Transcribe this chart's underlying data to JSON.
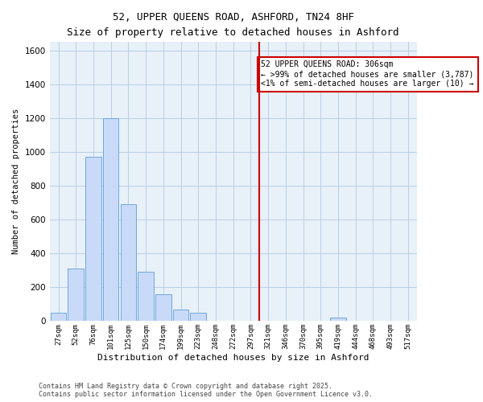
{
  "title": "52, UPPER QUEENS ROAD, ASHFORD, TN24 8HF",
  "subtitle": "Size of property relative to detached houses in Ashford",
  "xlabel": "Distribution of detached houses by size in Ashford",
  "ylabel": "Number of detached properties",
  "bar_labels": [
    "27sqm",
    "52sqm",
    "76sqm",
    "101sqm",
    "125sqm",
    "150sqm",
    "174sqm",
    "199sqm",
    "223sqm",
    "248sqm",
    "272sqm",
    "297sqm",
    "321sqm",
    "346sqm",
    "370sqm",
    "395sqm",
    "419sqm",
    "444sqm",
    "468sqm",
    "493sqm",
    "517sqm"
  ],
  "bar_values": [
    50,
    310,
    970,
    1200,
    690,
    290,
    160,
    70,
    50,
    0,
    0,
    0,
    0,
    0,
    0,
    0,
    20,
    0,
    0,
    0,
    0
  ],
  "bar_color": "#c9daf8",
  "bar_edge_color": "#6fa8dc",
  "vline_x": 11.5,
  "vline_color": "#cc0000",
  "ylim": [
    0,
    1650
  ],
  "yticks": [
    0,
    200,
    400,
    600,
    800,
    1000,
    1200,
    1400,
    1600
  ],
  "grid_color": "#b8cfe8",
  "bg_color": "#e8f0f8",
  "legend_title": "52 UPPER QUEENS ROAD: 306sqm",
  "legend_line1": "← >99% of detached houses are smaller (3,787)",
  "legend_line2": "<1% of semi-detached houses are larger (10) →",
  "footer1": "Contains HM Land Registry data © Crown copyright and database right 2025.",
  "footer2": "Contains public sector information licensed under the Open Government Licence v3.0."
}
